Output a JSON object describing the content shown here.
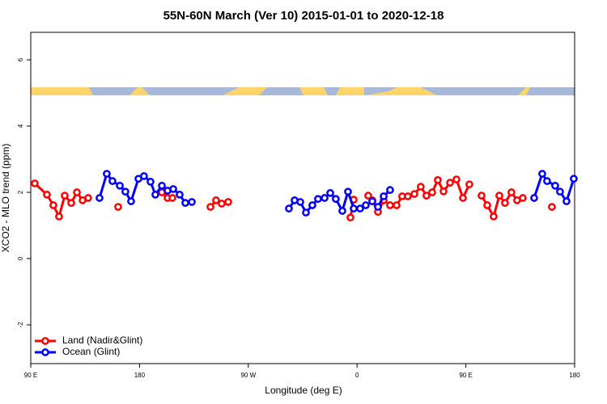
{
  "chart_data": {
    "type": "line",
    "title": "55N-60N March (Ver 10)   2015-01-01 to 2020-12-18",
    "x_label": "Longitude (deg E)",
    "y_label": "XCO2 - MLO trend (ppm)",
    "xlim": [
      90,
      540
    ],
    "ylim": [
      -3.17,
      6.83
    ],
    "xticks": [
      {
        "value": 90,
        "label": "90 E"
      },
      180,
      {
        "value": 270,
        "label": "90 W"
      },
      {
        "value": 360,
        "label": "0"
      },
      {
        "value": 450,
        "label": "90 E"
      },
      {
        "value": 540,
        "label": "180"
      }
    ],
    "yticks": [
      -2,
      0,
      2,
      4,
      6
    ],
    "legend": "bottom-left",
    "series": [
      {
        "name": "Land (Nadir&Glint)",
        "color": "#ff0000",
        "x": [
          93.3,
          103.4,
          108.7,
          113.4,
          118.1,
          123.5,
          128.2,
          132.9,
          137.5,
          null,
          162.3,
          null,
          198.5,
          203.2,
          207.2,
          null,
          238.7,
          243.3,
          248.0,
          253.4,
          null,
          354.5,
          357.2,
          null,
          369.2,
          372.6,
          377.3,
          382.0,
          387.3,
          392.7,
          397.3,
          402.0,
          407.4,
          412.7,
          417.4,
          422.1,
          426.8,
          431.5,
          436.9,
          442.2,
          447.6,
          452.9,
          null,
          463.0,
          467.7,
          473.0,
          477.7,
          482.4,
          487.7,
          492.4,
          497.1,
          null,
          521.2
        ],
        "values": [
          2.27,
          1.93,
          1.61,
          1.27,
          1.9,
          1.68,
          2.0,
          1.76,
          1.83,
          null,
          1.56,
          null,
          2.0,
          1.83,
          1.83,
          null,
          1.56,
          1.76,
          1.66,
          1.71,
          null,
          1.24,
          1.78,
          null,
          1.9,
          1.76,
          1.41,
          1.76,
          1.61,
          1.61,
          1.88,
          1.88,
          1.95,
          2.17,
          1.9,
          2.0,
          2.37,
          2.03,
          2.29,
          2.39,
          1.83,
          2.24,
          null,
          1.9,
          1.61,
          1.27,
          1.9,
          1.68,
          2.0,
          1.76,
          1.83,
          null,
          1.56
        ]
      },
      {
        "name": "Ocean (Glint)",
        "color": "#0000ff",
        "x": [
          146.9,
          152.9,
          157.6,
          163.7,
          168.3,
          173.0,
          179.1,
          183.7,
          189.1,
          193.1,
          198.5,
          203.2,
          207.9,
          213.2,
          217.9,
          223.3,
          null,
          303.6,
          308.3,
          313.0,
          317.7,
          323.0,
          327.7,
          333.1,
          337.8,
          342.4,
          347.8,
          352.5,
          357.2,
          362.5,
          367.2,
          372.6,
          377.3,
          382.0,
          387.3,
          null,
          506.5,
          513.2,
          517.2,
          523.9,
          527.9,
          533.3,
          539.3
        ],
        "values": [
          1.83,
          2.56,
          2.34,
          2.2,
          2.02,
          1.73,
          2.41,
          2.49,
          2.32,
          1.93,
          2.2,
          2.05,
          2.1,
          1.93,
          1.68,
          1.71,
          null,
          1.51,
          1.76,
          1.71,
          1.39,
          1.61,
          1.8,
          1.83,
          1.98,
          1.8,
          1.44,
          2.02,
          1.51,
          1.51,
          1.61,
          1.73,
          1.56,
          1.88,
          2.07,
          null,
          1.83,
          2.56,
          2.34,
          2.2,
          2.02,
          1.73,
          2.41
        ]
      }
    ]
  }
}
